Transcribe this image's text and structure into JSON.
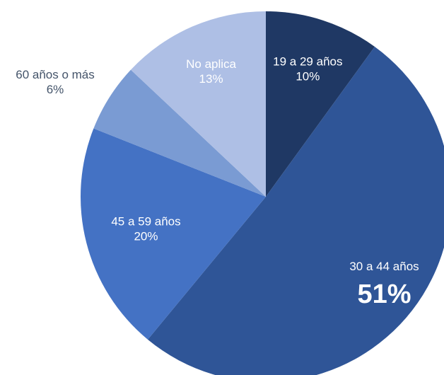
{
  "chart_data": {
    "type": "pie",
    "start_angle_deg": 0,
    "direction": "clockwise",
    "legend": "none",
    "slices": [
      {
        "label": "19 a 29 años",
        "value": 10,
        "value_label": "10%",
        "color": "#1f3864",
        "label_color": "#ffffff",
        "label_style": "normal",
        "label_position": "inside"
      },
      {
        "label": "30 a 44 años",
        "value": 51,
        "value_label": "51%",
        "color": "#2f5597",
        "label_color": "#ffffff",
        "label_style": "emphasized",
        "label_position": "inside"
      },
      {
        "label": "45 a 59 años",
        "value": 20,
        "value_label": "20%",
        "color": "#4472c4",
        "label_color": "#ffffff",
        "label_style": "normal",
        "label_position": "inside"
      },
      {
        "label": "60 años o más",
        "value": 6,
        "value_label": "6%",
        "color": "#7a9bd3",
        "label_color": "#44546a",
        "label_style": "normal",
        "label_position": "outside"
      },
      {
        "label": "No aplica",
        "value": 13,
        "value_label": "13%",
        "color": "#aebfe5",
        "label_color": "#ffffff",
        "label_style": "normal",
        "label_position": "inside"
      }
    ]
  }
}
